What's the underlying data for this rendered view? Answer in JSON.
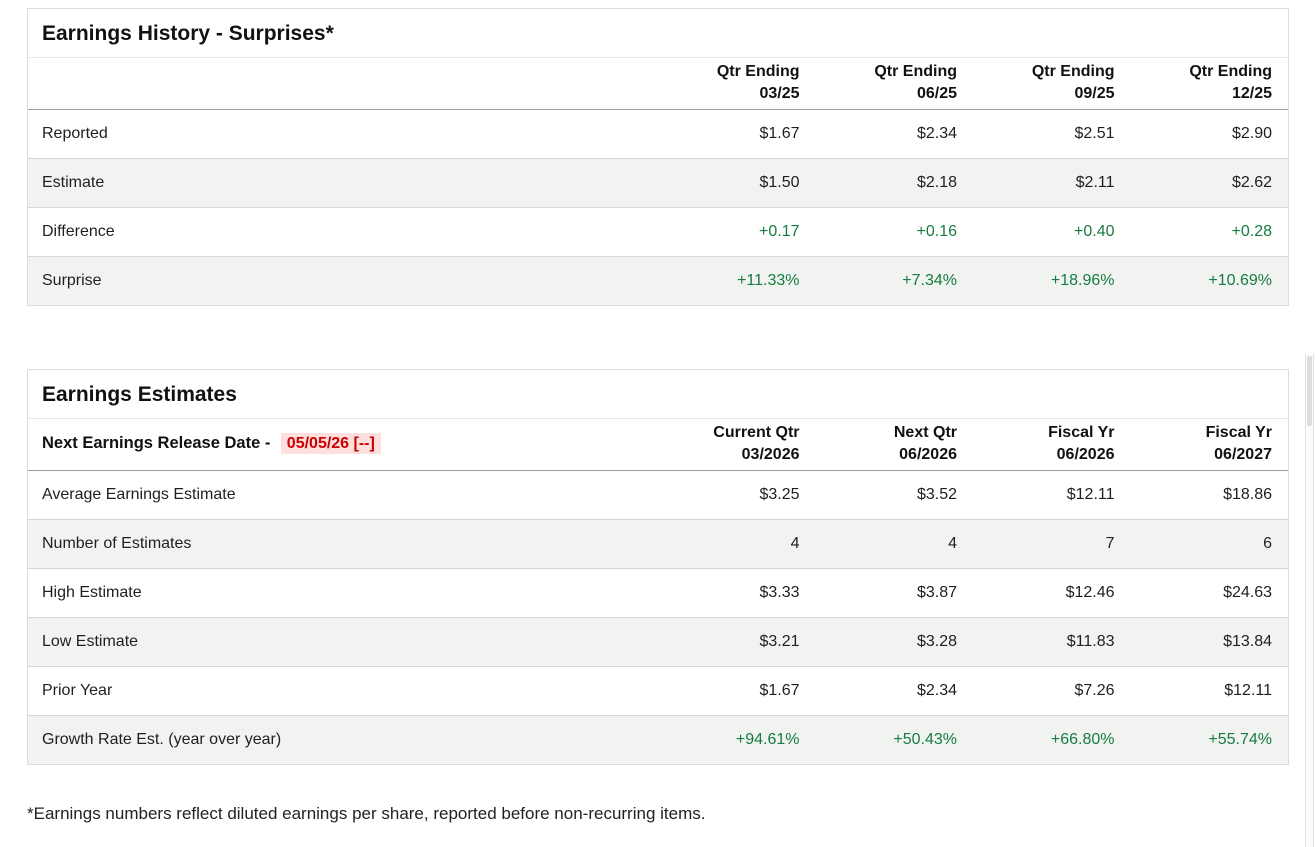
{
  "surprises": {
    "title": "Earnings History - Surprises*",
    "columns": [
      {
        "l1": "Qtr Ending",
        "l2": "03/25"
      },
      {
        "l1": "Qtr Ending",
        "l2": "06/25"
      },
      {
        "l1": "Qtr Ending",
        "l2": "09/25"
      },
      {
        "l1": "Qtr Ending",
        "l2": "12/25"
      }
    ],
    "rows": [
      {
        "label": "Reported",
        "values": [
          "$1.67",
          "$2.34",
          "$2.51",
          "$2.90"
        ]
      },
      {
        "label": "Estimate",
        "values": [
          "$1.50",
          "$2.18",
          "$2.11",
          "$2.62"
        ]
      },
      {
        "label": "Difference",
        "values": [
          "+0.17",
          "+0.16",
          "+0.40",
          "+0.28"
        ]
      },
      {
        "label": "Surprise",
        "values": [
          "+11.33%",
          "+7.34%",
          "+18.96%",
          "+10.69%"
        ]
      }
    ]
  },
  "estimates": {
    "title": "Earnings Estimates",
    "release_label": "Next Earnings Release Date -",
    "release_date": "05/05/26 [--]",
    "columns": [
      {
        "l1": "Current Qtr",
        "l2": "03/2026"
      },
      {
        "l1": "Next Qtr",
        "l2": "06/2026"
      },
      {
        "l1": "Fiscal Yr",
        "l2": "06/2026"
      },
      {
        "l1": "Fiscal Yr",
        "l2": "06/2027"
      }
    ],
    "rows": [
      {
        "label": "Average Earnings Estimate",
        "values": [
          "$3.25",
          "$3.52",
          "$12.11",
          "$18.86"
        ]
      },
      {
        "label": "Number of Estimates",
        "values": [
          "4",
          "4",
          "7",
          "6"
        ]
      },
      {
        "label": "High Estimate",
        "values": [
          "$3.33",
          "$3.87",
          "$12.46",
          "$24.63"
        ]
      },
      {
        "label": "Low Estimate",
        "values": [
          "$3.21",
          "$3.28",
          "$11.83",
          "$13.84"
        ]
      },
      {
        "label": "Prior Year",
        "values": [
          "$1.67",
          "$2.34",
          "$7.26",
          "$12.11"
        ]
      },
      {
        "label": "Growth Rate Est. (year over year)",
        "values": [
          "+94.61%",
          "+50.43%",
          "+66.80%",
          "+55.74%"
        ]
      }
    ]
  },
  "footnote": "*Earnings numbers reflect diluted earnings per share, reported before non-recurring items.",
  "colors": {
    "positive_green": "#177b41",
    "alert_red": "#cc0000",
    "alert_red_bg": "#ffdede",
    "row_shade": "#f0f3f0"
  }
}
